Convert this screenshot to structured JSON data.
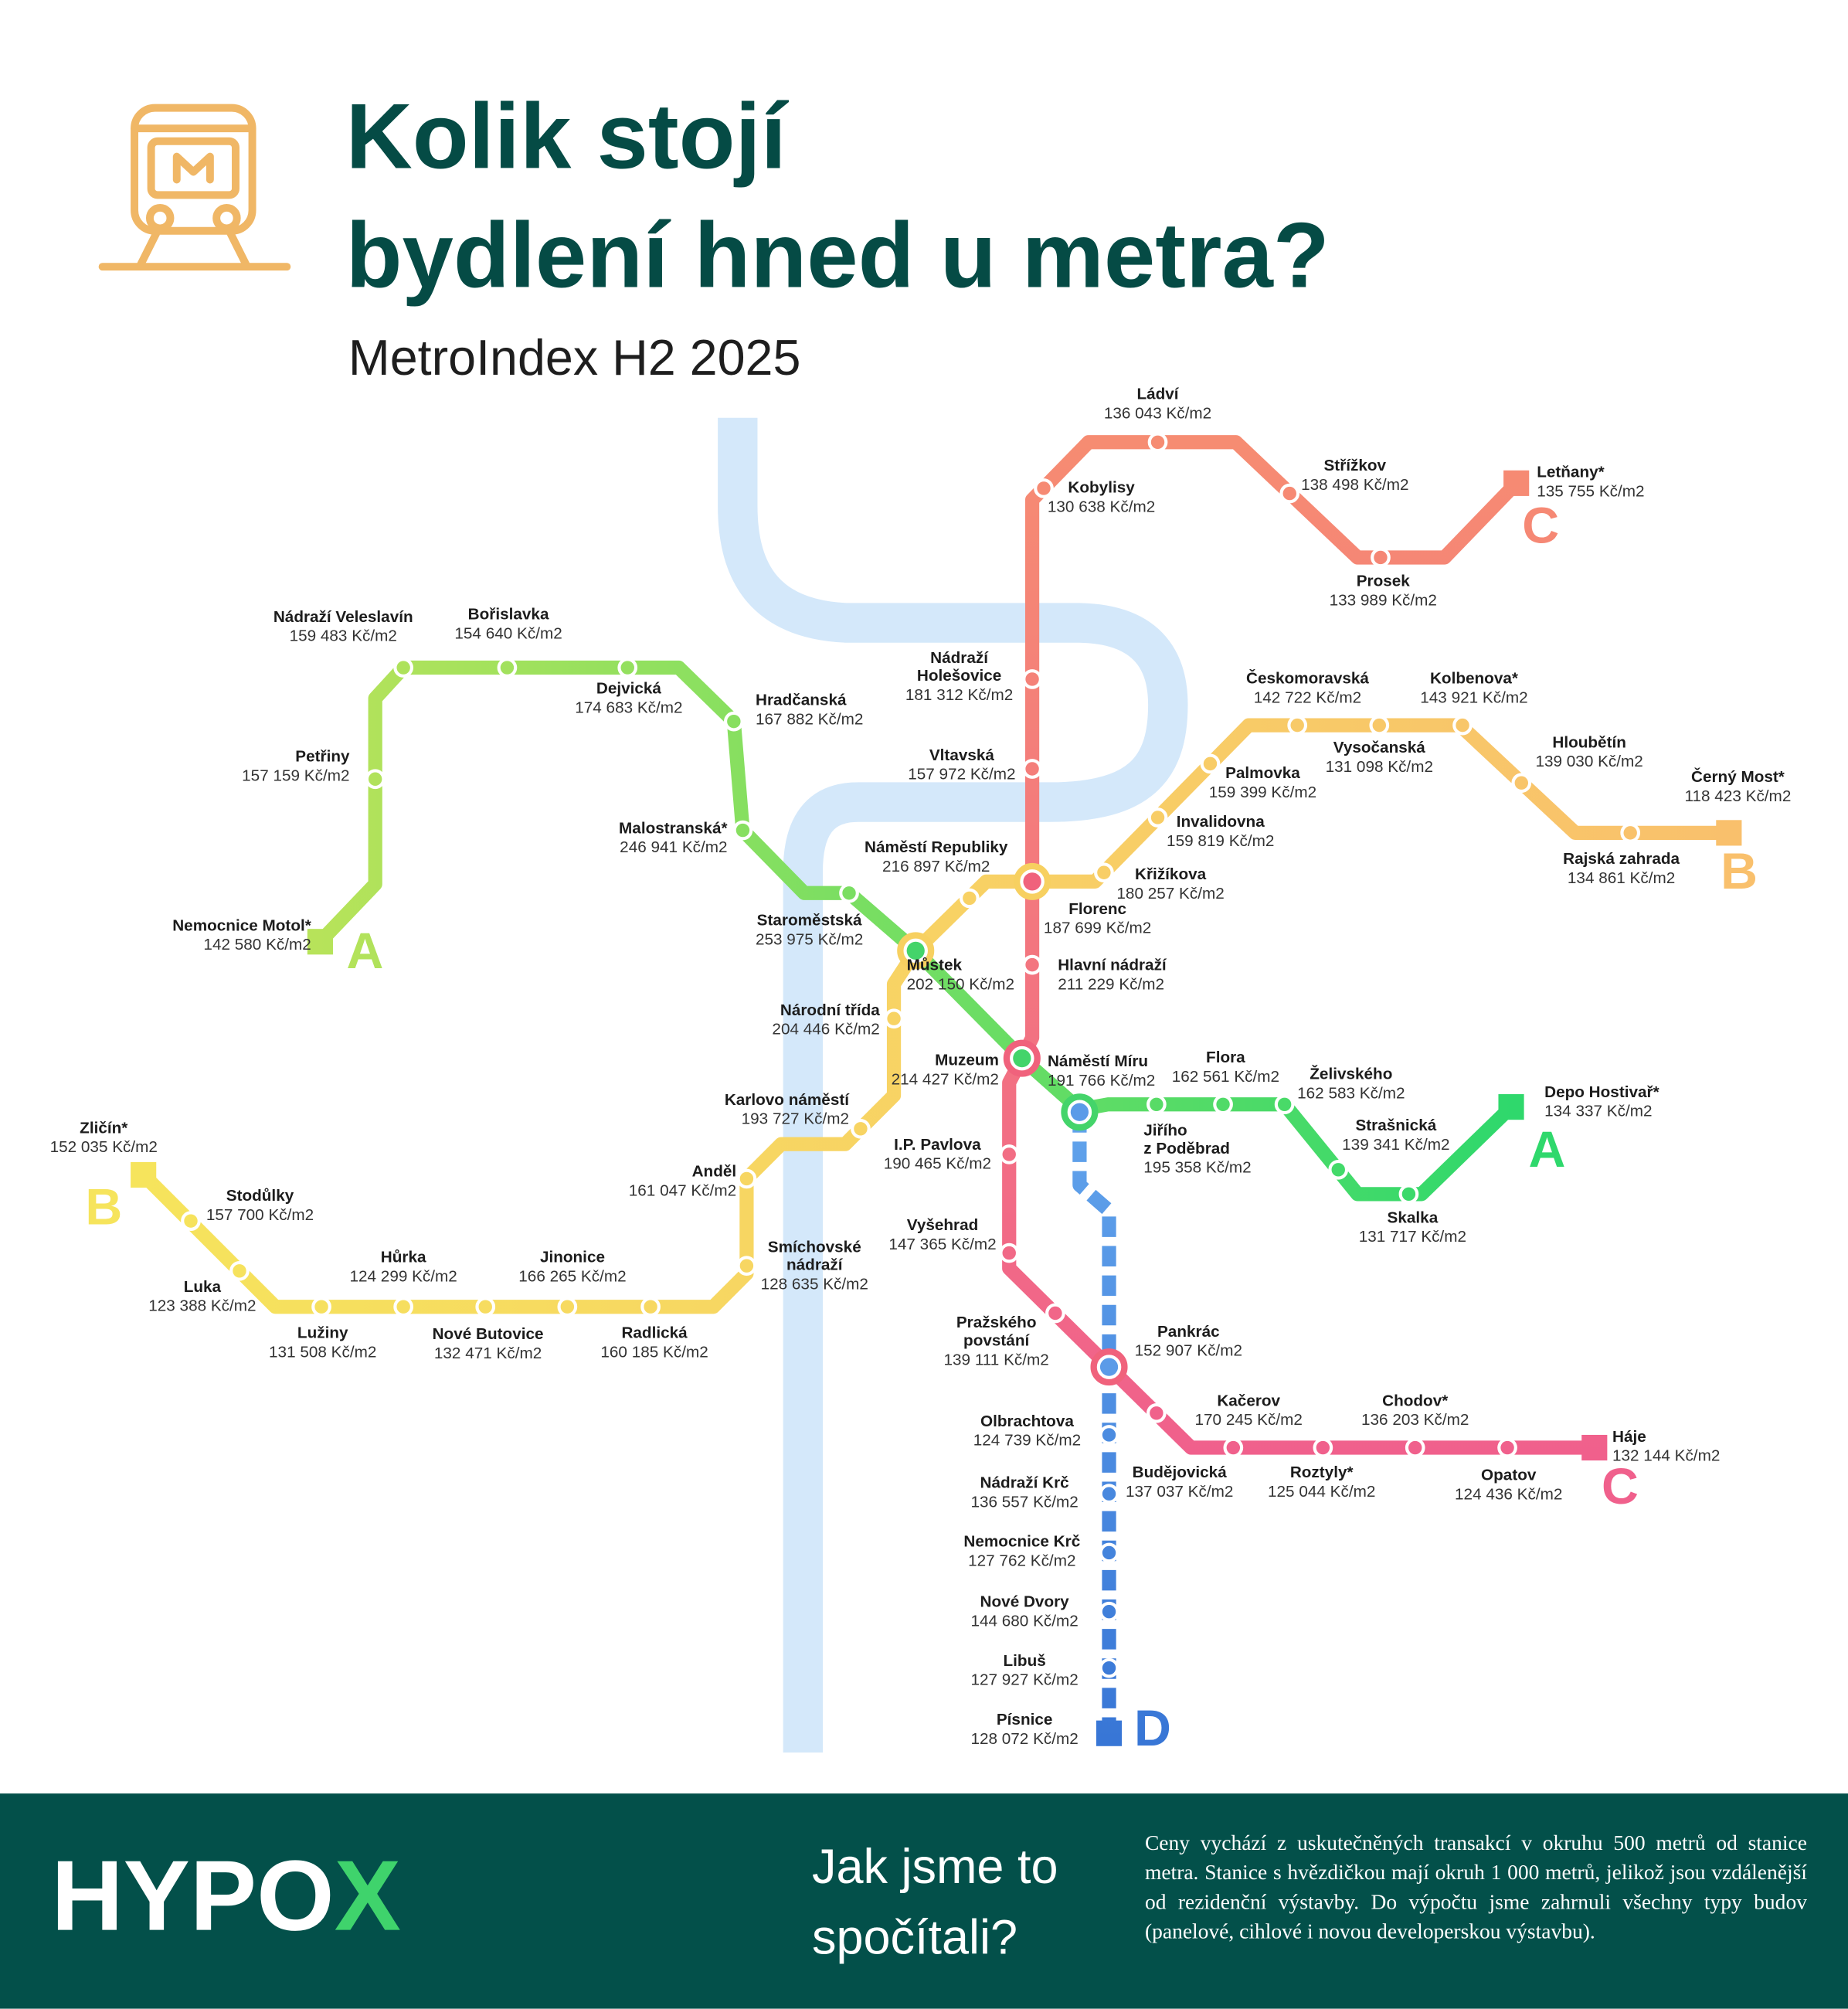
{
  "header": {
    "title_lines": [
      "Kolik stojí",
      "bydlení hned u metra?"
    ],
    "subtitle": "MetroIndex H2 2025"
  },
  "lines": [
    {
      "letter": "A",
      "stations": [
        {
          "name": "Nemocnice Motol*",
          "price": "142 580 Kč/m2"
        },
        {
          "name": "Petřiny",
          "price": "157 159 Kč/m2"
        },
        {
          "name": "Nádraží Veleslavín",
          "price": "159 483 Kč/m2"
        },
        {
          "name": "Bořislavka",
          "price": "154 640 Kč/m2"
        },
        {
          "name": "Dejvická",
          "price": "174 683 Kč/m2"
        },
        {
          "name": "Hradčanská",
          "price": "167 882 Kč/m2"
        },
        {
          "name": "Malostranská*",
          "price": "246 941 Kč/m2"
        },
        {
          "name": "Staroměstská",
          "price": "253 975 Kč/m2"
        },
        {
          "name": "Můstek",
          "price": "202 150 Kč/m2"
        },
        {
          "name": "Muzeum",
          "price": "214 427 Kč/m2"
        },
        {
          "name": "Náměstí Míru",
          "price": "191 766 Kč/m2"
        },
        {
          "name": [
            "Jiřího",
            "z Poděbrad"
          ],
          "price": "195 358 Kč/m2"
        },
        {
          "name": "Flora",
          "price": "162 561 Kč/m2"
        },
        {
          "name": "Želivského",
          "price": "162 583 Kč/m2"
        },
        {
          "name": "Strašnická",
          "price": "139 341 Kč/m2"
        },
        {
          "name": "Skalka",
          "price": "131 717 Kč/m2"
        },
        {
          "name": "Depo Hostivař*",
          "price": "134 337 Kč/m2"
        }
      ]
    },
    {
      "letter": "B",
      "stations": [
        {
          "name": "Zličín*",
          "price": "152 035 Kč/m2"
        },
        {
          "name": "Stodůlky",
          "price": "157 700 Kč/m2"
        },
        {
          "name": "Luka",
          "price": "123 388 Kč/m2"
        },
        {
          "name": "Lužiny",
          "price": "131 508 Kč/m2"
        },
        {
          "name": "Hůrka",
          "price": "124 299 Kč/m2"
        },
        {
          "name": "Nové Butovice",
          "price": "132 471 Kč/m2"
        },
        {
          "name": "Jinonice",
          "price": "166 265 Kč/m2"
        },
        {
          "name": "Radlická",
          "price": "160 185 Kč/m2"
        },
        {
          "name": [
            "Smíchovské",
            "nádraží"
          ],
          "price": "128 635 Kč/m2"
        },
        {
          "name": "Anděl",
          "price": "161 047 Kč/m2"
        },
        {
          "name": "Karlovo náměstí",
          "price": "193 727 Kč/m2"
        },
        {
          "name": "Národní třída",
          "price": "204 446 Kč/m2"
        },
        {
          "name": "Náměstí Republiky",
          "price": "216 897 Kč/m2"
        },
        {
          "name": "Florenc",
          "price": "187 699 Kč/m2"
        },
        {
          "name": "Křižíkova",
          "price": "180 257 Kč/m2"
        },
        {
          "name": "Invalidovna",
          "price": "159 819 Kč/m2"
        },
        {
          "name": "Palmovka",
          "price": "159 399 Kč/m2"
        },
        {
          "name": "Českomoravská",
          "price": "142 722 Kč/m2"
        },
        {
          "name": "Vysočanská",
          "price": "131 098 Kč/m2"
        },
        {
          "name": "Kolbenova*",
          "price": "143 921 Kč/m2"
        },
        {
          "name": "Hloubětín",
          "price": "139 030 Kč/m2"
        },
        {
          "name": "Rajská zahrada",
          "price": "134 861 Kč/m2"
        },
        {
          "name": "Černý Most*",
          "price": "118 423 Kč/m2"
        }
      ]
    },
    {
      "letter": "C",
      "stations": [
        {
          "name": "Letňany*",
          "price": "135 755 Kč/m2"
        },
        {
          "name": "Prosek",
          "price": "133 989 Kč/m2"
        },
        {
          "name": "Střížkov",
          "price": "138 498 Kč/m2"
        },
        {
          "name": "Ládví",
          "price": "136 043 Kč/m2"
        },
        {
          "name": "Kobylisy",
          "price": "130 638 Kč/m2"
        },
        {
          "name": [
            "Nádraží",
            "Holešovice"
          ],
          "price": "181 312 Kč/m2"
        },
        {
          "name": "Vltavská",
          "price": "157 972 Kč/m2"
        },
        {
          "name": "Hlavní nádraží",
          "price": "211 229 Kč/m2"
        },
        {
          "name": "I.P. Pavlova",
          "price": "190 465 Kč/m2"
        },
        {
          "name": "Vyšehrad",
          "price": "147 365 Kč/m2"
        },
        {
          "name": [
            "Pražského",
            "povstání"
          ],
          "price": "139 111 Kč/m2"
        },
        {
          "name": "Pankrác",
          "price": "152 907 Kč/m2"
        },
        {
          "name": "Budějovická",
          "price": "137 037 Kč/m2"
        },
        {
          "name": "Kačerov",
          "price": "170 245 Kč/m2"
        },
        {
          "name": "Roztyly*",
          "price": "125 044 Kč/m2"
        },
        {
          "name": "Chodov*",
          "price": "136 203 Kč/m2"
        },
        {
          "name": "Opatov",
          "price": "124 436 Kč/m2"
        },
        {
          "name": "Háje",
          "price": "132 144 Kč/m2"
        }
      ]
    },
    {
      "letter": "D",
      "stations": [
        {
          "name": "Olbrachtova",
          "price": "124 739 Kč/m2"
        },
        {
          "name": "Nádraží Krč",
          "price": "136 557 Kč/m2"
        },
        {
          "name": "Nemocnice Krč",
          "price": "127 762 Kč/m2"
        },
        {
          "name": "Nové Dvory",
          "price": "144 680 Kč/m2"
        },
        {
          "name": "Libuš",
          "price": "127 927 Kč/m2"
        },
        {
          "name": "Písnice",
          "price": "128 072 Kč/m2"
        }
      ]
    }
  ],
  "footer": {
    "logo": "HYPO",
    "logo_accent": "X",
    "question_lines": [
      "Jak jsme to",
      "spočítali?"
    ],
    "note": "Ceny vychází z uskutečněných transakcí v okruhu 500 metrů od stanice metra. Stanice s hvězdičkou mají okruh 1 000 metrů, jelikož jsou vzdálenější od rezidenční výstavby. Do výpočtu jsme zahrnuli všechny typy budov (panelové, cihlové i novou developerskou výstavbu)."
  }
}
